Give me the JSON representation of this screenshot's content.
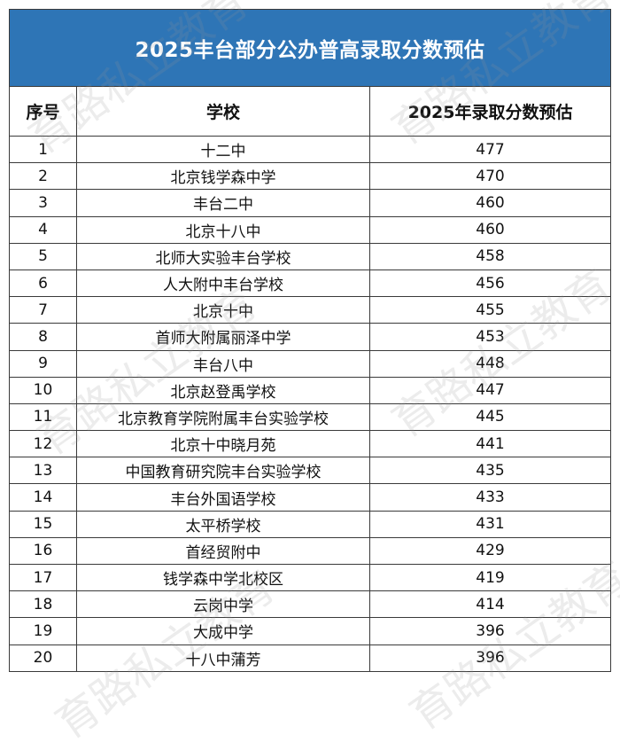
{
  "title": "2025丰台部分公办普高录取分数预估",
  "headers": [
    "序号",
    "学校",
    "2025年录取分数预估"
  ],
  "rows": [
    {
      "no": "1",
      "school": "十二中",
      "score": "477"
    },
    {
      "no": "2",
      "school": "北京钱学森中学",
      "score": "470"
    },
    {
      "no": "3",
      "school": "丰台二中",
      "score": "460"
    },
    {
      "no": "4",
      "school": "北京十八中",
      "score": "460"
    },
    {
      "no": "5",
      "school": "北师大实验丰台学校",
      "score": "458"
    },
    {
      "no": "6",
      "school": "人大附中丰台学校",
      "score": "456"
    },
    {
      "no": "7",
      "school": "北京十中",
      "score": "455"
    },
    {
      "no": "8",
      "school": "首师大附属丽泽中学",
      "score": "453"
    },
    {
      "no": "9",
      "school": "丰台八中",
      "score": "448"
    },
    {
      "no": "10",
      "school": "北京赵登禹学校",
      "score": "447"
    },
    {
      "no": "11",
      "school": "北京教育学院附属丰台实验学校",
      "score": "445"
    },
    {
      "no": "12",
      "school": "北京十中晓月苑",
      "score": "441"
    },
    {
      "no": "13",
      "school": "中国教育研究院丰台实验学校",
      "score": "435"
    },
    {
      "no": "14",
      "school": "丰台外国语学校",
      "score": "433"
    },
    {
      "no": "15",
      "school": "太平桥学校",
      "score": "431"
    },
    {
      "no": "16",
      "school": "首经贸附中",
      "score": "429"
    },
    {
      "no": "17",
      "school": "钱学森中学北校区",
      "score": "419"
    },
    {
      "no": "18",
      "school": "云岗中学",
      "score": "414"
    },
    {
      "no": "19",
      "school": "大成中学",
      "score": "396"
    },
    {
      "no": "20",
      "school": "十八中蒲芳",
      "score": "396"
    }
  ],
  "watermark": "育路私立教育",
  "colors": {
    "title_bg": "#2e75b6",
    "title_text": "#ffffff",
    "border": "#3a3a3a"
  }
}
